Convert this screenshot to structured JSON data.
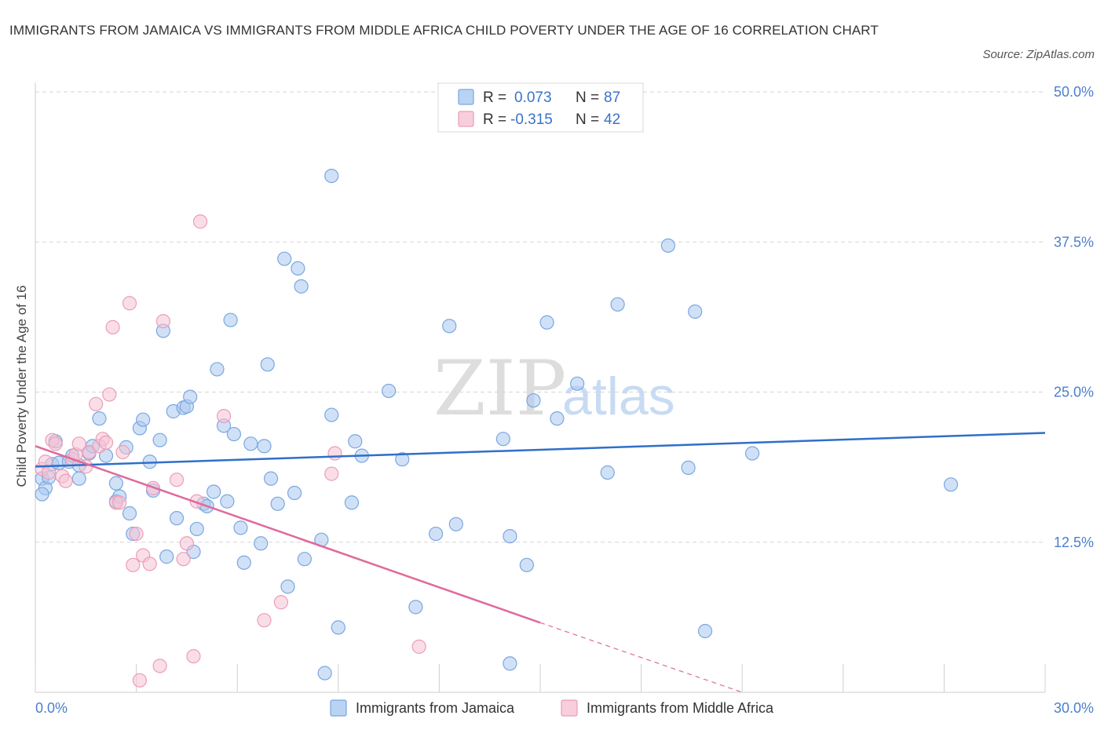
{
  "header": {
    "title": "IMMIGRANTS FROM JAMAICA VS IMMIGRANTS FROM MIDDLE AFRICA CHILD POVERTY UNDER THE AGE OF 16 CORRELATION CHART",
    "source": "Source: ZipAtlas.com"
  },
  "watermark": {
    "zip": "ZIP",
    "atlas": "atlas"
  },
  "colors": {
    "jamaica_fill": "#a9c8f0",
    "jamaica_stroke": "#7aa7e0",
    "jamaica_line": "#2f6fca",
    "africa_fill": "#f6c2d3",
    "africa_stroke": "#eb9db8",
    "africa_line": "#e0699a",
    "grid": "#d6d6d6"
  },
  "legend": {
    "rows": [
      {
        "r_label": "R =",
        "r_value": "0.073",
        "n_label": "N =",
        "n_value": "87"
      },
      {
        "r_label": "R =",
        "r_value": "-0.315",
        "n_label": "N =",
        "n_value": "42"
      }
    ]
  },
  "chart_data": {
    "type": "scatter",
    "ylabel": "Child Poverty Under the Age of 16",
    "xlim": [
      0,
      30
    ],
    "ylim": [
      0,
      50
    ],
    "x_tick_labels": [
      {
        "value": 0,
        "label": "0.0%"
      },
      {
        "value": 30,
        "label": "30.0%"
      }
    ],
    "y_tick_labels": [
      {
        "value": 12.5,
        "label": "12.5%"
      },
      {
        "value": 25,
        "label": "25.0%"
      },
      {
        "value": 37.5,
        "label": "37.5%"
      },
      {
        "value": 50,
        "label": "50.0%"
      }
    ],
    "grid": true,
    "series": [
      {
        "name": "Immigrants from Jamaica",
        "trend": {
          "x": [
            0,
            30
          ],
          "y": [
            18.8,
            21.6
          ]
        },
        "points": [
          [
            0.2,
            17.8
          ],
          [
            0.3,
            17.0
          ],
          [
            0.2,
            16.5
          ],
          [
            0.4,
            17.9
          ],
          [
            0.5,
            19.0
          ],
          [
            0.6,
            20.9
          ],
          [
            0.7,
            19.1
          ],
          [
            1.0,
            19.2
          ],
          [
            1.1,
            19.7
          ],
          [
            1.3,
            18.9
          ],
          [
            1.3,
            17.8
          ],
          [
            1.6,
            19.9
          ],
          [
            1.7,
            20.5
          ],
          [
            1.9,
            22.8
          ],
          [
            2.1,
            19.7
          ],
          [
            2.4,
            15.9
          ],
          [
            2.4,
            17.4
          ],
          [
            2.5,
            16.3
          ],
          [
            2.7,
            20.4
          ],
          [
            2.8,
            14.9
          ],
          [
            2.9,
            13.2
          ],
          [
            3.1,
            22.0
          ],
          [
            3.2,
            22.7
          ],
          [
            3.4,
            19.2
          ],
          [
            3.5,
            16.8
          ],
          [
            3.7,
            21.0
          ],
          [
            3.8,
            30.1
          ],
          [
            3.9,
            11.3
          ],
          [
            4.1,
            23.4
          ],
          [
            4.2,
            14.5
          ],
          [
            4.4,
            23.7
          ],
          [
            4.5,
            23.8
          ],
          [
            4.6,
            24.6
          ],
          [
            4.7,
            11.7
          ],
          [
            4.8,
            13.6
          ],
          [
            5.0,
            15.7
          ],
          [
            5.1,
            15.5
          ],
          [
            5.3,
            16.7
          ],
          [
            5.4,
            26.9
          ],
          [
            5.6,
            22.2
          ],
          [
            5.7,
            15.9
          ],
          [
            5.8,
            31.0
          ],
          [
            5.9,
            21.5
          ],
          [
            6.1,
            13.7
          ],
          [
            6.2,
            10.8
          ],
          [
            6.4,
            20.7
          ],
          [
            6.7,
            12.4
          ],
          [
            6.8,
            20.5
          ],
          [
            6.9,
            27.3
          ],
          [
            7.0,
            17.8
          ],
          [
            7.2,
            15.7
          ],
          [
            7.4,
            36.1
          ],
          [
            7.5,
            8.8
          ],
          [
            7.7,
            16.6
          ],
          [
            7.8,
            35.3
          ],
          [
            7.9,
            33.8
          ],
          [
            8.0,
            11.1
          ],
          [
            8.5,
            12.7
          ],
          [
            8.6,
            1.6
          ],
          [
            8.8,
            23.1
          ],
          [
            8.8,
            43.0
          ],
          [
            9.0,
            5.4
          ],
          [
            9.4,
            15.8
          ],
          [
            9.5,
            20.9
          ],
          [
            9.7,
            19.7
          ],
          [
            10.5,
            25.1
          ],
          [
            10.9,
            19.4
          ],
          [
            11.3,
            7.1
          ],
          [
            11.9,
            13.2
          ],
          [
            12.3,
            30.5
          ],
          [
            12.5,
            14.0
          ],
          [
            13.9,
            21.1
          ],
          [
            14.1,
            2.4
          ],
          [
            14.1,
            13.0
          ],
          [
            14.6,
            10.6
          ],
          [
            14.8,
            24.3
          ],
          [
            15.2,
            30.8
          ],
          [
            15.5,
            22.8
          ],
          [
            16.1,
            25.7
          ],
          [
            17.0,
            18.3
          ],
          [
            17.3,
            32.3
          ],
          [
            18.8,
            37.2
          ],
          [
            19.4,
            18.7
          ],
          [
            19.6,
            31.7
          ],
          [
            19.9,
            5.1
          ],
          [
            21.3,
            19.9
          ],
          [
            27.2,
            17.3
          ]
        ]
      },
      {
        "name": "Immigrants from Middle Africa",
        "trend": {
          "x": [
            0,
            15
          ],
          "y": [
            20.5,
            5.8
          ]
        },
        "trend_dashed": {
          "x": [
            15,
            21
          ],
          "y": [
            5.8,
            0.0
          ]
        },
        "points": [
          [
            0.2,
            18.6
          ],
          [
            0.3,
            19.2
          ],
          [
            0.4,
            18.3
          ],
          [
            0.5,
            21.0
          ],
          [
            0.6,
            20.7
          ],
          [
            0.8,
            18.0
          ],
          [
            0.9,
            17.6
          ],
          [
            1.1,
            19.4
          ],
          [
            1.2,
            19.8
          ],
          [
            1.3,
            20.7
          ],
          [
            1.5,
            18.8
          ],
          [
            1.6,
            20.0
          ],
          [
            1.8,
            24.0
          ],
          [
            1.9,
            20.5
          ],
          [
            2.0,
            21.1
          ],
          [
            2.1,
            20.8
          ],
          [
            2.2,
            24.8
          ],
          [
            2.3,
            30.4
          ],
          [
            2.4,
            15.8
          ],
          [
            2.5,
            15.8
          ],
          [
            2.6,
            20.0
          ],
          [
            2.8,
            32.4
          ],
          [
            2.9,
            10.6
          ],
          [
            3.0,
            13.2
          ],
          [
            3.1,
            1.0
          ],
          [
            3.2,
            11.4
          ],
          [
            3.4,
            10.7
          ],
          [
            3.5,
            17.0
          ],
          [
            3.7,
            2.2
          ],
          [
            3.8,
            30.9
          ],
          [
            4.2,
            17.7
          ],
          [
            4.4,
            11.1
          ],
          [
            4.5,
            12.4
          ],
          [
            4.7,
            3.0
          ],
          [
            4.8,
            15.9
          ],
          [
            4.9,
            39.2
          ],
          [
            5.6,
            23.0
          ],
          [
            6.8,
            6.0
          ],
          [
            7.3,
            7.5
          ],
          [
            8.8,
            18.2
          ],
          [
            8.9,
            19.9
          ],
          [
            11.4,
            3.8
          ]
        ]
      }
    ]
  },
  "bottom_legend": {
    "items": [
      "Immigrants from Jamaica",
      "Immigrants from Middle Africa"
    ]
  }
}
